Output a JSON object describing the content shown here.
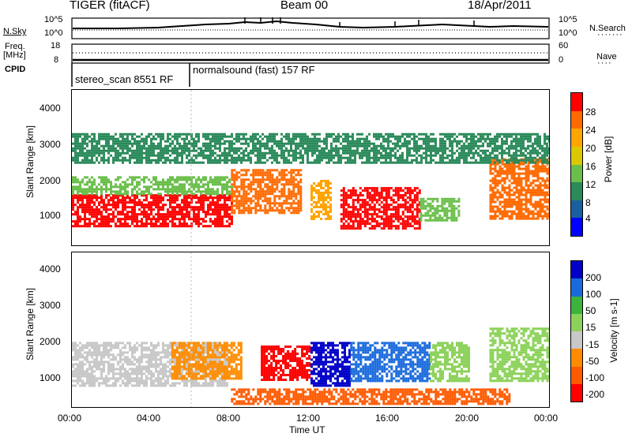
{
  "header": {
    "radar": "TIGER (fitACF)",
    "beam": "Beam 00",
    "date": "18/Apr/2011"
  },
  "top_panel": {
    "left_label_1": "N.Sky",
    "left_label_2": "Freq.",
    "left_label_3": "[MHz]",
    "left_label_4": "CPID",
    "right_label_1": "N.Search",
    "right_label_2": "Nave",
    "nsky_ticks": [
      "10^5",
      "10^0"
    ],
    "nsearch_ticks": [
      "10^5",
      "10^0"
    ],
    "freq_ticks": [
      "18",
      "8"
    ],
    "nave_ticks": [
      "60",
      "0"
    ],
    "cpid_1": "stereo_scan 8551 RF",
    "cpid_2": "normalsound (fast) 157 RF"
  },
  "power_panel": {
    "ylabel": "Slant Range [km]",
    "yticks": [
      "4000",
      "3000",
      "2000",
      "1000"
    ],
    "cbar_label": "Power [dB]",
    "cbar_ticks": [
      "28",
      "24",
      "20",
      "16",
      "12",
      "8",
      "4"
    ],
    "colors": [
      "#ff0000",
      "#ff6a00",
      "#ffa500",
      "#dcc800",
      "#6abf4b",
      "#2a8a5a",
      "#1a5fa0",
      "#0000ff"
    ]
  },
  "velocity_panel": {
    "ylabel": "Slant Range [km]",
    "yticks": [
      "4000",
      "3000",
      "2000",
      "1000"
    ],
    "cbar_label": "Velocity [m s-1]",
    "cbar_ticks": [
      "200",
      "100",
      "50",
      "15",
      "-15",
      "-50",
      "-100",
      "-200"
    ],
    "colors": [
      "#0000c8",
      "#1a6adc",
      "#3cb43c",
      "#8cd25a",
      "#c8c8c8",
      "#ff8c00",
      "#ff5a00",
      "#ff0000"
    ]
  },
  "xaxis": {
    "ticks": [
      "00:00",
      "04:00",
      "08:00",
      "12:00",
      "16:00",
      "20:00",
      "00:00"
    ],
    "label": "Time UT"
  },
  "chart_data": [
    {
      "type": "heatmap",
      "title": "Power [dB]",
      "xlabel": "",
      "ylabel": "Slant Range [km]",
      "x_range_hours": [
        0,
        24
      ],
      "ylim": [
        180,
        4500
      ],
      "zlim": [
        0,
        30
      ],
      "regions": [
        {
          "t0": 0.0,
          "t1": 8.0,
          "r0": 700,
          "r1": 1600,
          "value": 27
        },
        {
          "t0": 0.0,
          "t1": 8.0,
          "r0": 1600,
          "r1": 2100,
          "value": 14
        },
        {
          "t0": 8.0,
          "t1": 11.5,
          "r0": 1100,
          "r1": 2300,
          "value": 24
        },
        {
          "t0": 12.0,
          "t1": 13.0,
          "r0": 900,
          "r1": 2000,
          "value": 20
        },
        {
          "t0": 13.5,
          "t1": 17.5,
          "r0": 650,
          "r1": 1800,
          "value": 26
        },
        {
          "t0": 17.5,
          "t1": 19.5,
          "r0": 900,
          "r1": 1500,
          "value": 14
        },
        {
          "t0": 21.0,
          "t1": 24.0,
          "r0": 900,
          "r1": 2600,
          "value": 22
        },
        {
          "t0": 0.0,
          "t1": 24.0,
          "r0": 2500,
          "r1": 3300,
          "value": 8
        }
      ]
    },
    {
      "type": "heatmap",
      "title": "Velocity [m s-1]",
      "xlabel": "Time UT",
      "ylabel": "Slant Range [km]",
      "x_range_hours": [
        0,
        24
      ],
      "ylim": [
        180,
        4500
      ],
      "zlim": [
        -200,
        200
      ],
      "regions": [
        {
          "t0": 0.0,
          "t1": 7.8,
          "r0": 750,
          "r1": 2000,
          "value": 0
        },
        {
          "t0": 5.0,
          "t1": 8.5,
          "r0": 1000,
          "r1": 2000,
          "value": -40
        },
        {
          "t0": 9.5,
          "t1": 12.0,
          "r0": 950,
          "r1": 1900,
          "value": -200
        },
        {
          "t0": 12.0,
          "t1": 14.0,
          "r0": 800,
          "r1": 2000,
          "value": 200
        },
        {
          "t0": 14.0,
          "t1": 18.0,
          "r0": 900,
          "r1": 2000,
          "value": 100
        },
        {
          "t0": 18.0,
          "t1": 20.0,
          "r0": 900,
          "r1": 2000,
          "value": 30
        },
        {
          "t0": 21.0,
          "t1": 24.0,
          "r0": 900,
          "r1": 2400,
          "value": 30
        },
        {
          "t0": 8.0,
          "t1": 22.0,
          "r0": 250,
          "r1": 700,
          "value": -60
        }
      ]
    }
  ]
}
